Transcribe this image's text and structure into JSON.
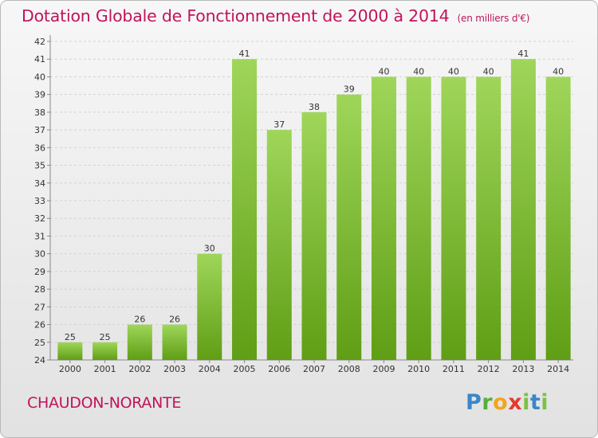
{
  "title": "Dotation Globale de Fonctionnement de 2000 à 2014",
  "unit": "(en milliers d'€)",
  "commune": "CHAUDON-NORANTE",
  "logo": {
    "text": "Proxiti"
  },
  "colors": {
    "title": "#c0145c",
    "bar_top": "#9fd65a",
    "bar_bottom": "#5f9e15"
  },
  "chart_data": {
    "type": "bar",
    "title": "Dotation Globale de Fonctionnement de 2000 à 2014",
    "xlabel": "",
    "ylabel": "",
    "categories": [
      "2000",
      "2001",
      "2002",
      "2003",
      "2004",
      "2005",
      "2006",
      "2007",
      "2008",
      "2009",
      "2010",
      "2011",
      "2012",
      "2013",
      "2014"
    ],
    "values": [
      25,
      25,
      26,
      26,
      30,
      41,
      37,
      38,
      39,
      40,
      40,
      40,
      40,
      41,
      40
    ],
    "ylim": [
      24,
      42
    ],
    "yticks": [
      24,
      25,
      26,
      27,
      28,
      29,
      30,
      31,
      32,
      33,
      34,
      35,
      36,
      37,
      38,
      39,
      40,
      41,
      42
    ],
    "grid": true,
    "legend": "none"
  }
}
